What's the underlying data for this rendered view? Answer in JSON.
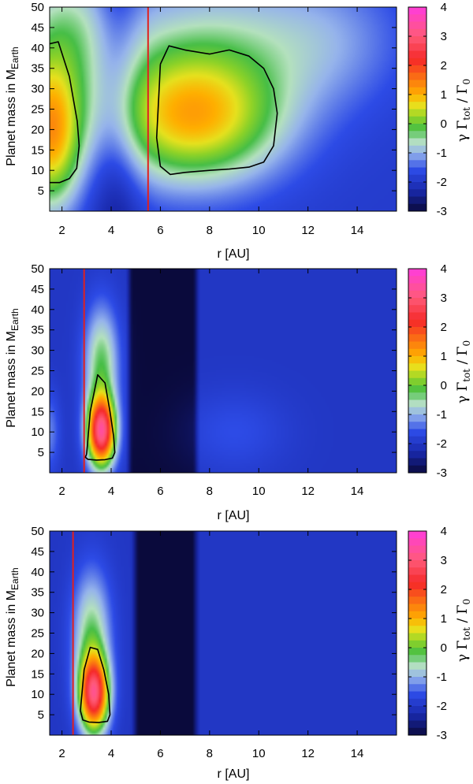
{
  "chart_data": [
    {
      "type": "heatmap",
      "xlabel": "r [AU]",
      "ylabel": {
        "base": "Planet mass in M",
        "sub": "Earth"
      },
      "xlim": [
        1.5,
        15.6
      ],
      "ylim": [
        0,
        50
      ],
      "xticks": [
        "2",
        "4",
        "6",
        "8",
        "10",
        "12",
        "14"
      ],
      "yticks": [
        "5",
        "10",
        "15",
        "20",
        "25",
        "30",
        "35",
        "40",
        "45",
        "50"
      ],
      "colorbar": {
        "label": {
          "pre": "γ Γ",
          "sub1": "tot",
          "mid": " / Γ",
          "sub2": "0"
        },
        "range": [
          -3,
          4
        ],
        "ticks": [
          "-3",
          "-2",
          "-1",
          "0",
          "1",
          "2",
          "3",
          "4"
        ]
      },
      "vertical_line_r": 5.5,
      "zero_contours": [
        {
          "r": [
            1.5,
            1.85,
            2.3,
            2.62,
            2.7,
            2.6,
            2.3,
            1.9,
            1.5
          ],
          "mass": [
            41,
            41.5,
            33,
            22,
            16,
            10.5,
            8,
            7,
            7
          ]
        },
        {
          "r": [
            6.0,
            6.35,
            7.0,
            8.0,
            8.8,
            9.6,
            10.2,
            10.6,
            10.75,
            10.6,
            10.2,
            9.6,
            8.8,
            8.0,
            7.0,
            6.4,
            6.0,
            5.85,
            5.95,
            6.0
          ],
          "mass": [
            36,
            40.5,
            39.5,
            38.5,
            39.5,
            38,
            35,
            30,
            24,
            16,
            12,
            10.8,
            10.3,
            10,
            9.5,
            9,
            11,
            18,
            30,
            36
          ]
        }
      ],
      "field_note": "positive lobes near r=1.5–2.5 and r=6–10.7, negative trough at r≈3.5–4.5"
    },
    {
      "type": "heatmap",
      "xlabel": "r [AU]",
      "ylabel": {
        "base": "Planet mass in M",
        "sub": "Earth"
      },
      "xlim": [
        1.5,
        15.6
      ],
      "ylim": [
        0,
        50
      ],
      "xticks": [
        "2",
        "4",
        "6",
        "8",
        "10",
        "12",
        "14"
      ],
      "yticks": [
        "5",
        "10",
        "15",
        "20",
        "25",
        "30",
        "35",
        "40",
        "45",
        "50"
      ],
      "colorbar": {
        "label": {
          "pre": "γ Γ",
          "sub1": "tot",
          "mid": " / Γ",
          "sub2": "0"
        },
        "range": [
          -3,
          4
        ],
        "ticks": [
          "-3",
          "-2",
          "-1",
          "0",
          "1",
          "2",
          "3",
          "4"
        ]
      },
      "vertical_line_r": 2.9,
      "zero_contours": [
        {
          "r": [
            3.0,
            3.15,
            3.45,
            3.75,
            3.95,
            4.1,
            4.15,
            4.05,
            3.75,
            3.4,
            3.05,
            2.95,
            3.0
          ],
          "mass": [
            4.5,
            15,
            24,
            22,
            15,
            9,
            5,
            3.6,
            3.2,
            3.1,
            3.3,
            3.8,
            4.5
          ]
        }
      ]
    },
    {
      "type": "heatmap",
      "xlabel": "r [AU]",
      "ylabel": {
        "base": "Planet mass in M",
        "sub": "Earth"
      },
      "xlim": [
        1.5,
        15.6
      ],
      "ylim": [
        0,
        50
      ],
      "xticks": [
        "2",
        "4",
        "6",
        "8",
        "10",
        "12",
        "14"
      ],
      "yticks": [
        "5",
        "10",
        "15",
        "20",
        "25",
        "30",
        "35",
        "40",
        "45",
        "50"
      ],
      "colorbar": {
        "label": {
          "pre": "γ Γ",
          "sub1": "tot",
          "mid": " / Γ",
          "sub2": "0"
        },
        "range": [
          -3,
          4
        ],
        "ticks": [
          "-3",
          "-2",
          "-1",
          "0",
          "1",
          "2",
          "3",
          "4"
        ]
      },
      "vertical_line_r": 2.45,
      "zero_contours": [
        {
          "r": [
            2.75,
            2.9,
            3.15,
            3.45,
            3.7,
            3.9,
            3.95,
            3.85,
            3.5,
            3.1,
            2.85,
            2.75
          ],
          "mass": [
            6,
            16,
            21.5,
            21,
            16,
            10,
            5,
            3.4,
            3.1,
            3.2,
            3.7,
            6
          ]
        }
      ]
    }
  ]
}
